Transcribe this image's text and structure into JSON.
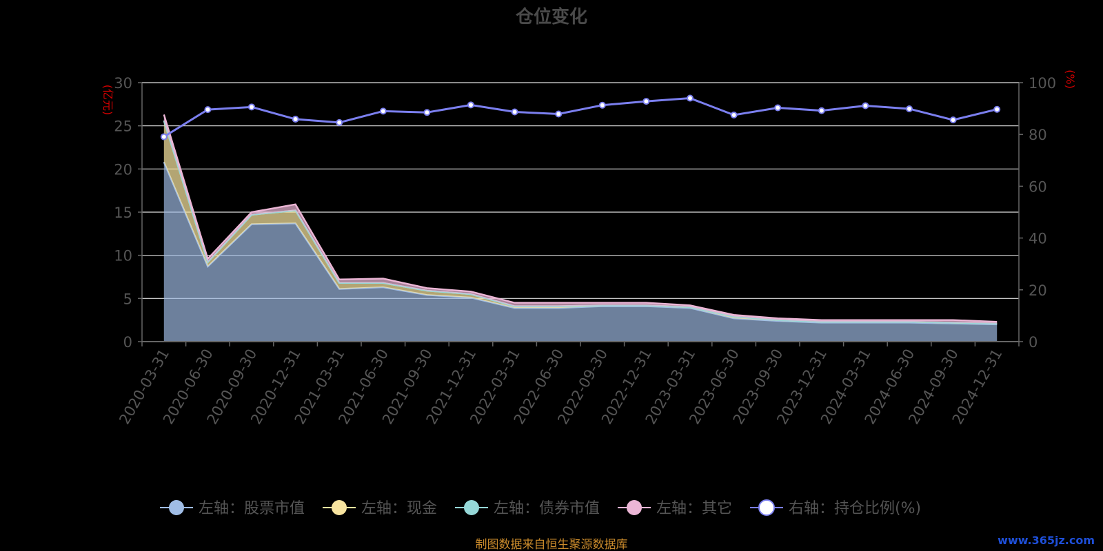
{
  "title": "仓位变化",
  "left_unit": "(亿元)",
  "right_unit": "(%)",
  "source_note": "制图数据来自恒生聚源数据库",
  "watermark": "www.365jz.com",
  "colors": {
    "stock": "#a0bde6",
    "cash": "#f8e5a0",
    "bond": "#96d8d8",
    "other": "#ecb6d6",
    "ratio_line": "#7b7fef",
    "grid": "#e0e0e0",
    "axis": "#666666"
  },
  "chart_data": {
    "type": "area",
    "title": "仓位变化",
    "categories": [
      "2020-03-31",
      "2020-06-30",
      "2020-09-30",
      "2020-12-31",
      "2021-03-31",
      "2021-06-30",
      "2021-09-30",
      "2021-12-31",
      "2022-03-31",
      "2022-06-30",
      "2022-09-30",
      "2022-12-31",
      "2023-03-31",
      "2023-06-30",
      "2023-09-30",
      "2023-12-31",
      "2024-03-31",
      "2024-06-30",
      "2024-09-30",
      "2024-12-31"
    ],
    "left_axis": {
      "min": 0,
      "max": 30,
      "ticks": [
        0,
        5,
        10,
        15,
        20,
        25,
        30
      ],
      "label": "(亿元)"
    },
    "right_axis": {
      "min": 0,
      "max": 100,
      "ticks": [
        0,
        20,
        40,
        60,
        80,
        100
      ],
      "label": "(%)"
    },
    "grid": true,
    "legend_position": "bottom",
    "series": [
      {
        "name": "左轴：股票市值",
        "axis": "left",
        "stacked": true,
        "values": [
          20.8,
          8.7,
          13.6,
          13.7,
          6.1,
          6.3,
          5.4,
          5.1,
          3.9,
          3.9,
          4.1,
          4.1,
          3.9,
          2.7,
          2.4,
          2.2,
          2.2,
          2.2,
          2.1,
          2.0
        ]
      },
      {
        "name": "左轴：现金",
        "axis": "left",
        "stacked": true,
        "values": [
          4.8,
          0.5,
          1.1,
          1.5,
          0.7,
          0.5,
          0.5,
          0.4,
          0.2,
          0.2,
          0.1,
          0.1,
          0.1,
          0.2,
          0.1,
          0.1,
          0.1,
          0.1,
          0.1,
          0.1
        ]
      },
      {
        "name": "左轴：债券市值",
        "axis": "left",
        "stacked": true,
        "values": [
          0,
          0,
          0,
          0,
          0,
          0,
          0,
          0,
          0,
          0,
          0,
          0,
          0,
          0,
          0,
          0,
          0,
          0,
          0,
          0
        ]
      },
      {
        "name": "左轴：其它",
        "axis": "left",
        "stacked": true,
        "values": [
          0.7,
          0.4,
          0.3,
          0.7,
          0.4,
          0.5,
          0.3,
          0.3,
          0.4,
          0.4,
          0.3,
          0.3,
          0.2,
          0.2,
          0.2,
          0.2,
          0.2,
          0.2,
          0.3,
          0.2
        ]
      },
      {
        "name": "右轴：持仓比例(%)",
        "axis": "right",
        "type": "line",
        "values": [
          79.1,
          89.6,
          90.6,
          85.9,
          84.6,
          89.0,
          88.5,
          91.4,
          88.7,
          87.9,
          91.3,
          92.8,
          94.0,
          87.5,
          90.3,
          89.2,
          91.1,
          89.9,
          85.6,
          89.7
        ]
      }
    ]
  }
}
